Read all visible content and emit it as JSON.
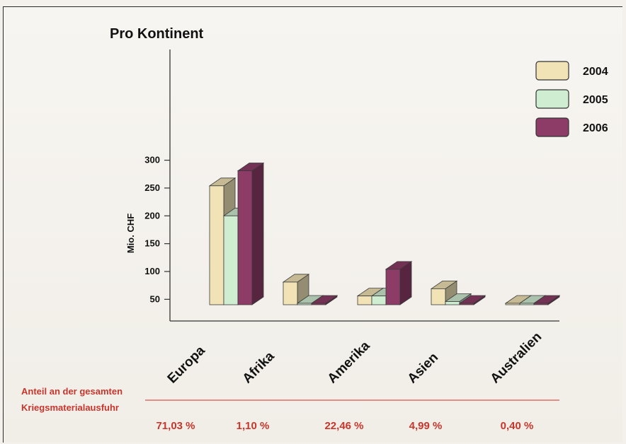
{
  "chart_data": {
    "type": "bar",
    "title": "Pro Kontinent",
    "ylabel": "Mio. CHF",
    "xlabel": "",
    "ylim": [
      0,
      300
    ],
    "yticks": [
      50,
      100,
      150,
      200,
      250,
      300
    ],
    "categories": [
      "Europa",
      "Afrika",
      "Amerika",
      "Asien",
      "Australien"
    ],
    "series": [
      {
        "name": "2004",
        "color": "#f1e3b6",
        "values": [
          254,
          81,
          56,
          69,
          0
        ]
      },
      {
        "name": "2005",
        "color": "#cfedd0",
        "values": [
          200,
          2,
          56,
          46,
          0
        ]
      },
      {
        "name": "2006",
        "color": "#8c3c66",
        "values": [
          281,
          2,
          104,
          40,
          0
        ]
      }
    ],
    "legend": "top-right",
    "grid": false,
    "share": {
      "label_line1": "Anteil an der gesamten",
      "label_line2": "Kriegsmaterialausfuhr",
      "values": [
        "71,03 %",
        "1,10 %",
        "22,46 %",
        "4,99 %",
        "0,40 %"
      ]
    }
  }
}
